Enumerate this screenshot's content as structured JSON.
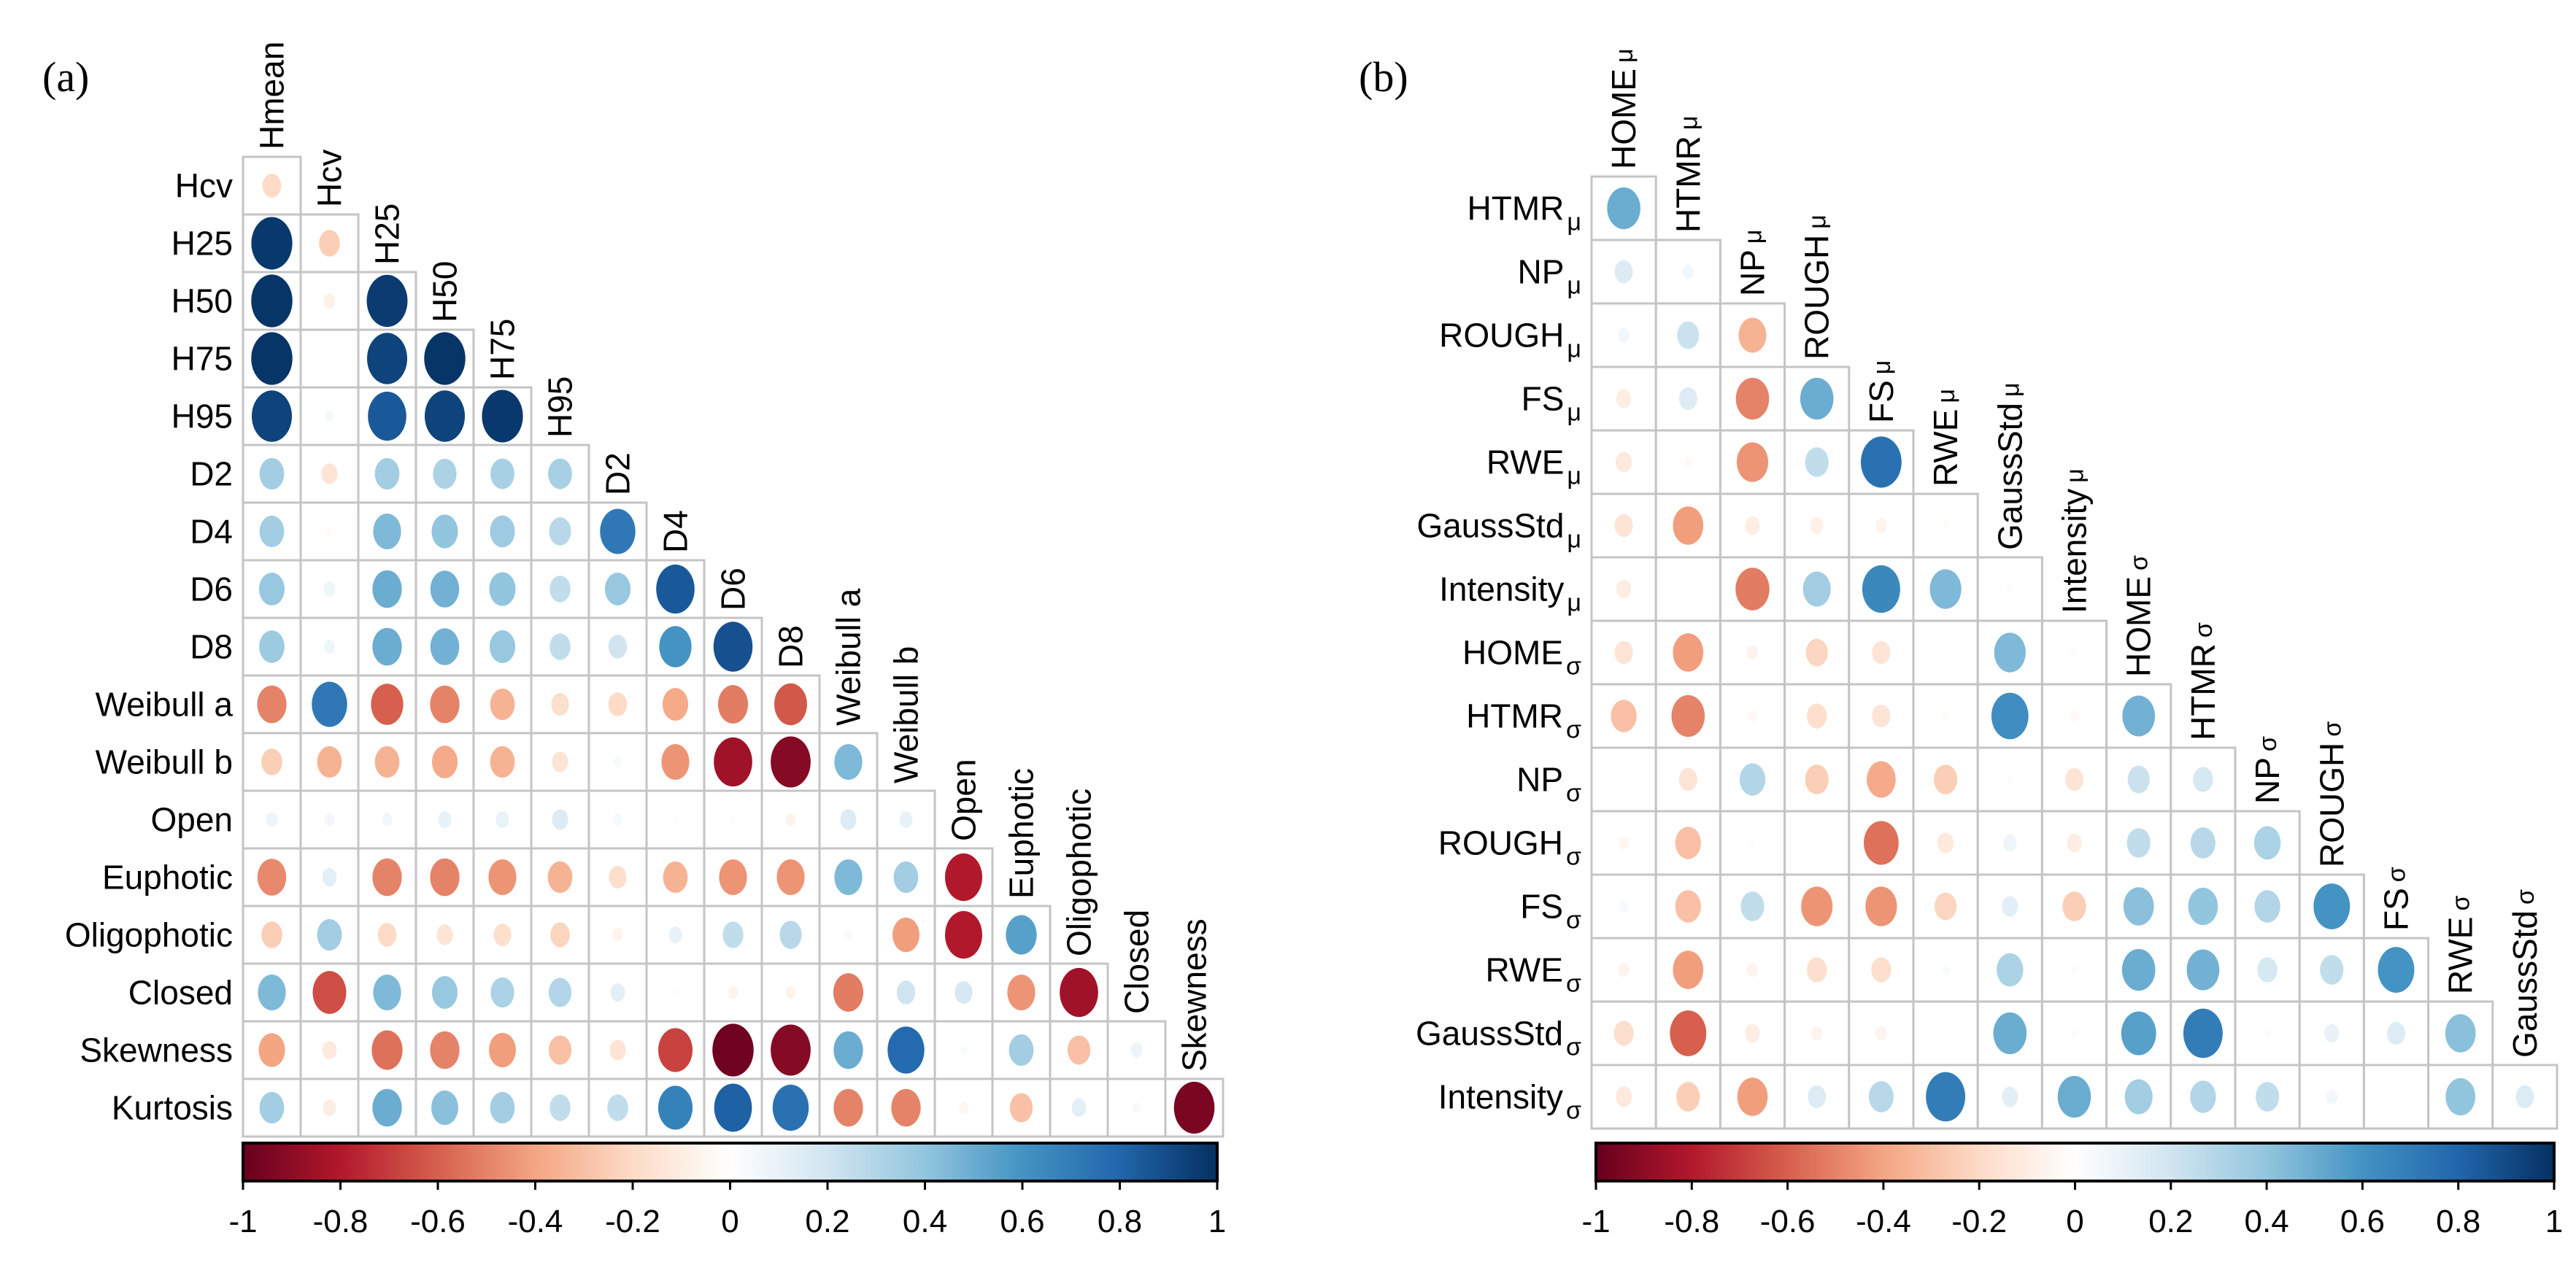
{
  "chart_data": [
    {
      "type": "heatmap",
      "panel_label": "(a)",
      "layout": "lower-triangle correlation matrix (circles: size and color encode correlation)",
      "variables": [
        "Hmean",
        "Hcv",
        "H25",
        "H50",
        "H75",
        "H95",
        "D2",
        "D4",
        "D6",
        "D8",
        "Weibull a",
        "Weibull b",
        "Open",
        "Euphotic",
        "Oligophotic",
        "Closed",
        "Skewness",
        "Kurtosis"
      ],
      "column_labels": [
        "Hmean",
        "Hcv",
        "H25",
        "H50",
        "H75",
        "H95",
        "D2",
        "D4",
        "D6",
        "D8",
        "Weibull a",
        "Weibull b",
        "Open",
        "Euphotic",
        "Oligophotic",
        "Closed",
        "Skewness"
      ],
      "row_labels": [
        {
          "main": "Hcv",
          "sub": ""
        },
        {
          "main": "H25",
          "sub": ""
        },
        {
          "main": "H50",
          "sub": ""
        },
        {
          "main": "H75",
          "sub": ""
        },
        {
          "main": "H95",
          "sub": ""
        },
        {
          "main": "D2",
          "sub": ""
        },
        {
          "main": "D4",
          "sub": ""
        },
        {
          "main": "D6",
          "sub": ""
        },
        {
          "main": "D8",
          "sub": ""
        },
        {
          "main": "Weibull a",
          "sub": ""
        },
        {
          "main": "Weibull b",
          "sub": ""
        },
        {
          "main": "Open",
          "sub": ""
        },
        {
          "main": "Euphotic",
          "sub": ""
        },
        {
          "main": "Oligophotic",
          "sub": ""
        },
        {
          "main": "Closed",
          "sub": ""
        },
        {
          "main": "Skewness",
          "sub": ""
        },
        {
          "main": "Kurtosis",
          "sub": ""
        }
      ],
      "values": [
        [
          -0.2
        ],
        [
          0.97,
          -0.25
        ],
        [
          0.98,
          -0.08,
          0.96
        ],
        [
          0.98,
          0.0,
          0.93,
          0.98
        ],
        [
          0.93,
          0.05,
          0.85,
          0.93,
          0.97
        ],
        [
          0.35,
          -0.15,
          0.35,
          0.32,
          0.33,
          0.33
        ],
        [
          0.35,
          -0.03,
          0.45,
          0.4,
          0.36,
          0.28,
          0.72
        ],
        [
          0.38,
          0.08,
          0.5,
          0.48,
          0.4,
          0.25,
          0.38,
          0.85
        ],
        [
          0.37,
          0.07,
          0.5,
          0.48,
          0.38,
          0.25,
          0.2,
          0.6,
          0.88
        ],
        [
          -0.5,
          0.72,
          -0.6,
          -0.5,
          -0.35,
          -0.18,
          -0.2,
          -0.38,
          -0.52,
          -0.62
        ],
        [
          -0.25,
          -0.35,
          -0.35,
          -0.38,
          -0.35,
          -0.15,
          0.04,
          -0.45,
          -0.85,
          -0.92,
          0.45
        ],
        [
          0.08,
          0.06,
          0.06,
          0.1,
          0.1,
          0.15,
          0.05,
          0.02,
          0.02,
          -0.06,
          0.15,
          0.1
        ],
        [
          -0.48,
          0.12,
          -0.5,
          -0.5,
          -0.45,
          -0.35,
          -0.18,
          -0.35,
          -0.45,
          -0.45,
          0.45,
          0.35,
          -0.8
        ],
        [
          -0.25,
          0.35,
          -0.2,
          -0.15,
          -0.18,
          -0.22,
          -0.06,
          0.1,
          0.25,
          0.28,
          0.04,
          -0.42,
          -0.8,
          0.55
        ],
        [
          0.45,
          -0.65,
          0.45,
          0.38,
          0.32,
          0.3,
          0.12,
          0.02,
          -0.06,
          -0.06,
          -0.52,
          0.2,
          0.18,
          -0.45,
          -0.85
        ],
        [
          -0.4,
          -0.12,
          -0.55,
          -0.5,
          -0.42,
          -0.3,
          -0.15,
          -0.68,
          -0.98,
          -0.92,
          0.5,
          0.78,
          0.03,
          0.35,
          -0.3,
          0.08
        ],
        [
          0.35,
          -0.1,
          0.5,
          0.42,
          0.35,
          0.25,
          0.25,
          0.68,
          0.82,
          0.75,
          -0.5,
          -0.5,
          -0.05,
          -0.3,
          0.12,
          0.04,
          -0.95
        ]
      ],
      "colorbar": {
        "range": [
          -1,
          1
        ],
        "ticks": [
          "-1",
          "-0.8",
          "-0.6",
          "-0.4",
          "-0.2",
          "0",
          "0.2",
          "0.4",
          "0.6",
          "0.8",
          "1"
        ],
        "colors": [
          "#67001f",
          "#b2182b",
          "#d6604d",
          "#f4a582",
          "#fddbc7",
          "#ffffff",
          "#d1e5f0",
          "#92c5de",
          "#4393c3",
          "#2166ac",
          "#053061"
        ],
        "placement": "bottom"
      }
    },
    {
      "type": "heatmap",
      "panel_label": "(b)",
      "layout": "lower-triangle correlation matrix (circles: size and color encode correlation)",
      "variables": [
        "HOMEμ",
        "HTMRμ",
        "NPμ",
        "ROUGHμ",
        "FSμ",
        "RWEμ",
        "GaussStdμ",
        "Intensityμ",
        "HOMEσ",
        "HTMRσ",
        "NPσ",
        "ROUGHσ",
        "FSσ",
        "RWEσ",
        "GaussStdσ",
        "Intensityσ"
      ],
      "column_labels": [
        {
          "main": "HOME",
          "sub": "μ"
        },
        {
          "main": "HTMR",
          "sub": "μ"
        },
        {
          "main": "NP",
          "sub": "μ"
        },
        {
          "main": "ROUGH",
          "sub": "μ"
        },
        {
          "main": "FS",
          "sub": "μ"
        },
        {
          "main": "RWE",
          "sub": "μ"
        },
        {
          "main": "GaussStd",
          "sub": "μ"
        },
        {
          "main": "Intensity",
          "sub": "μ"
        },
        {
          "main": "HOME",
          "sub": "σ"
        },
        {
          "main": "HTMR",
          "sub": "σ"
        },
        {
          "main": "NP",
          "sub": "σ"
        },
        {
          "main": "ROUGH",
          "sub": "σ"
        },
        {
          "main": "FS",
          "sub": "σ"
        },
        {
          "main": "RWE",
          "sub": "σ"
        },
        {
          "main": "GaussStd",
          "sub": "σ"
        }
      ],
      "row_labels": [
        {
          "main": "HTMR",
          "sub": "μ"
        },
        {
          "main": "NP",
          "sub": "μ"
        },
        {
          "main": "ROUGH",
          "sub": "μ"
        },
        {
          "main": "FS",
          "sub": "μ"
        },
        {
          "main": "RWE",
          "sub": "μ"
        },
        {
          "main": "GaussStd",
          "sub": "μ"
        },
        {
          "main": "Intensity",
          "sub": "μ"
        },
        {
          "main": "HOME",
          "sub": "σ"
        },
        {
          "main": "HTMR",
          "sub": "σ"
        },
        {
          "main": "NP",
          "sub": "σ"
        },
        {
          "main": "ROUGH",
          "sub": "σ"
        },
        {
          "main": "FS",
          "sub": "σ"
        },
        {
          "main": "RWE",
          "sub": "σ"
        },
        {
          "main": "GaussStd",
          "sub": "σ"
        },
        {
          "main": "Intensity",
          "sub": "σ"
        }
      ],
      "values": [
        [
          0.5
        ],
        [
          0.15,
          0.06
        ],
        [
          0.06,
          0.22,
          -0.35
        ],
        [
          -0.1,
          0.15,
          -0.5,
          0.5
        ],
        [
          -0.12,
          -0.03,
          -0.45,
          0.25,
          0.75
        ],
        [
          -0.15,
          -0.42,
          -0.1,
          -0.08,
          -0.06,
          -0.02
        ],
        [
          -0.1,
          0.0,
          -0.52,
          0.35,
          0.65,
          0.45,
          -0.02
        ],
        [
          -0.15,
          -0.42,
          -0.06,
          -0.22,
          -0.15,
          0.0,
          0.45,
          -0.02
        ],
        [
          -0.3,
          -0.5,
          -0.04,
          -0.18,
          -0.15,
          -0.02,
          0.62,
          -0.04,
          0.48
        ],
        [
          0.0,
          -0.15,
          0.3,
          -0.25,
          -0.38,
          -0.25,
          0.02,
          -0.15,
          0.22,
          0.18
        ],
        [
          -0.05,
          -0.3,
          0.02,
          0.0,
          -0.55,
          -0.12,
          0.08,
          -0.1,
          0.25,
          0.28,
          0.32
        ],
        [
          0.04,
          -0.3,
          0.25,
          -0.45,
          -0.45,
          -0.22,
          0.12,
          -0.25,
          0.42,
          0.4,
          0.3,
          0.6
        ],
        [
          -0.06,
          -0.42,
          -0.06,
          -0.18,
          -0.18,
          0.03,
          0.32,
          0.02,
          0.5,
          0.48,
          0.18,
          0.25,
          0.6
        ],
        [
          -0.18,
          -0.6,
          -0.1,
          -0.06,
          -0.06,
          0.0,
          0.5,
          0.02,
          0.55,
          0.7,
          0.02,
          0.1,
          0.15,
          0.42
        ],
        [
          -0.12,
          -0.25,
          -0.42,
          0.15,
          0.28,
          0.7,
          0.12,
          0.5,
          0.35,
          0.3,
          0.25,
          0.06,
          0.0,
          0.4,
          0.15
        ]
      ],
      "colorbar": {
        "range": [
          -1,
          1
        ],
        "ticks": [
          "-1",
          "-0.8",
          "-0.6",
          "-0.4",
          "-0.2",
          "0",
          "0.2",
          "0.4",
          "0.6",
          "0.8",
          "1"
        ],
        "colors": [
          "#67001f",
          "#b2182b",
          "#d6604d",
          "#f4a582",
          "#fddbc7",
          "#ffffff",
          "#d1e5f0",
          "#92c5de",
          "#4393c3",
          "#2166ac",
          "#053061"
        ],
        "placement": "bottom"
      }
    }
  ]
}
